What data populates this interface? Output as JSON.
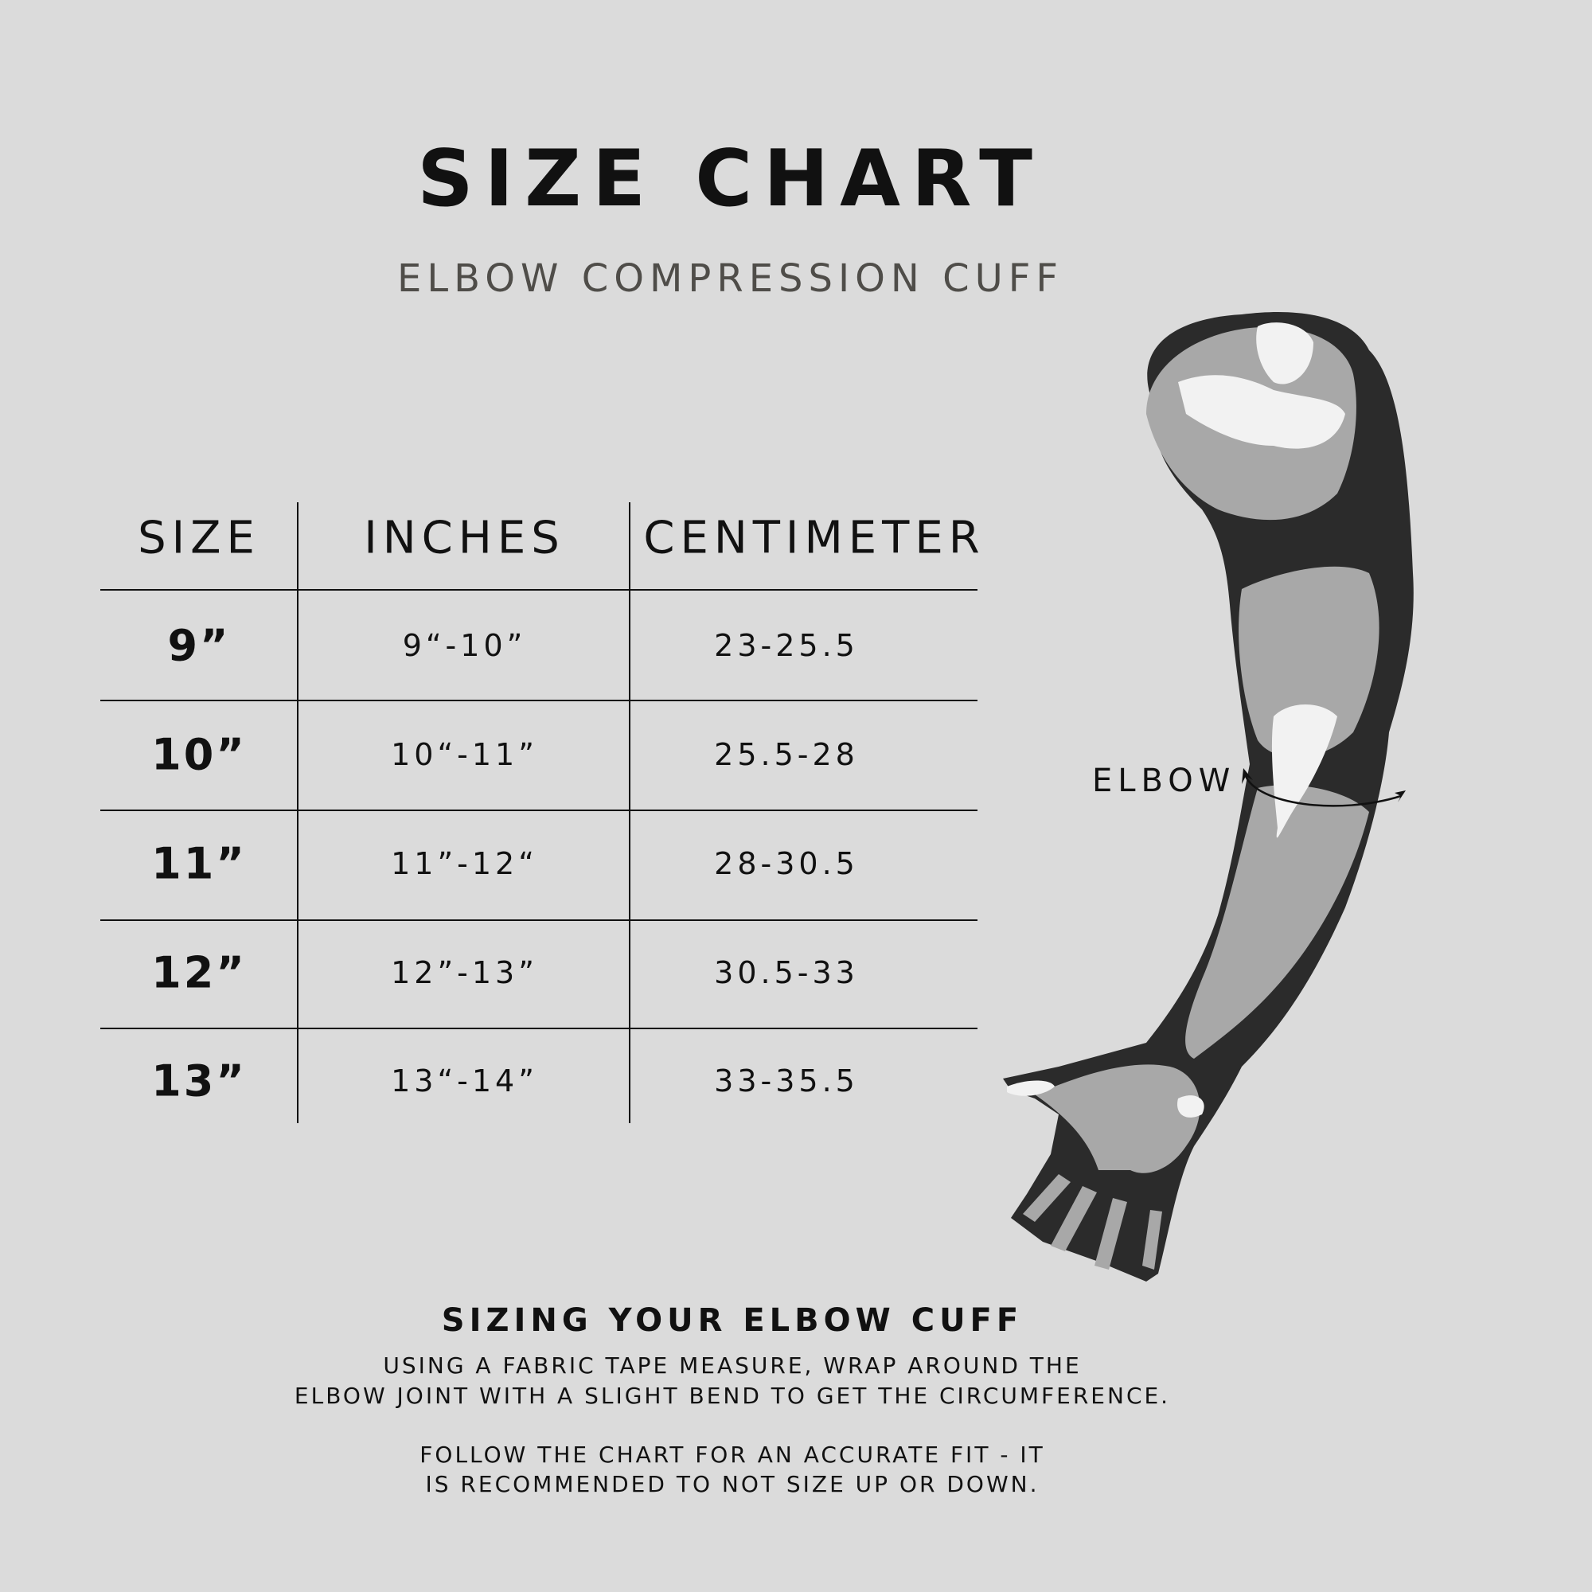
{
  "title": "SIZE CHART",
  "subtitle": "ELBOW COMPRESSION CUFF",
  "table": {
    "headers": [
      "SIZE",
      "INCHES",
      "CENTIMETER"
    ],
    "rows": [
      {
        "size": "9”",
        "inches": "9“-10”",
        "cm": "23-25.5"
      },
      {
        "size": "10”",
        "inches": "10“-11”",
        "cm": "25.5-28"
      },
      {
        "size": "11”",
        "inches": "11”-12“",
        "cm": "28-30.5"
      },
      {
        "size": "12”",
        "inches": "12”-13”",
        "cm": "30.5-33"
      },
      {
        "size": "13”",
        "inches": "13“-14”",
        "cm": "33-35.5"
      }
    ]
  },
  "illustration": {
    "elbow_label": "ELBOW"
  },
  "instructions": {
    "heading": "SIZING YOUR ELBOW CUFF",
    "paragraph1": [
      "USING A FABRIC TAPE MEASURE, WRAP AROUND THE",
      "ELBOW JOINT WITH A SLIGHT BEND TO GET THE CIRCUMFERENCE."
    ],
    "paragraph2": [
      "FOLLOW THE CHART FOR AN ACCURATE FIT - IT",
      "IS RECOMMENDED TO NOT SIZE UP OR DOWN."
    ]
  },
  "colors": {
    "background": "#dbdbdb",
    "text": "#111111",
    "subtitle": "#4f4d49"
  }
}
